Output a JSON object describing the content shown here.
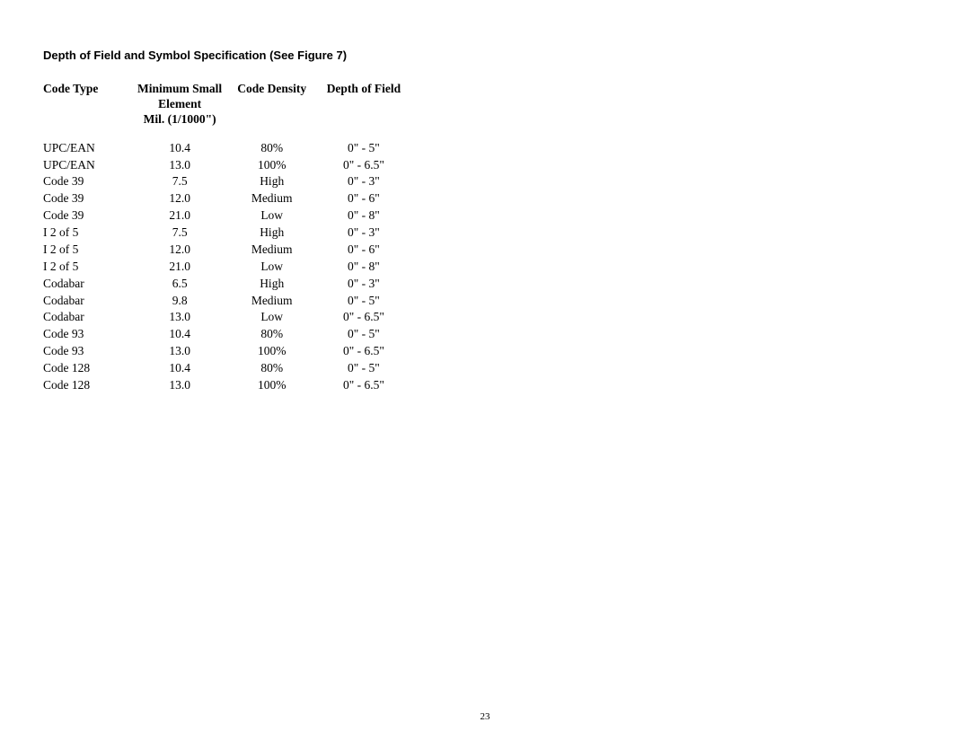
{
  "section_title": "Depth of Field and Symbol Specification (See Figure 7)",
  "page_number": "23",
  "table": {
    "columns": [
      {
        "key": "code_type",
        "label": "Code Type",
        "class": "col-code"
      },
      {
        "key": "min_element",
        "label": "Minimum Small\nElement\nMil. (1/1000\")",
        "class": "col-element"
      },
      {
        "key": "density",
        "label": "Code Density",
        "class": "col-density"
      },
      {
        "key": "depth",
        "label": "Depth of Field",
        "class": "col-depth"
      }
    ],
    "rows": [
      {
        "code_type": "UPC/EAN",
        "min_element": "10.4",
        "density": "80%",
        "depth": "0\" - 5\""
      },
      {
        "code_type": "UPC/EAN",
        "min_element": "13.0",
        "density": "100%",
        "depth": "0\" - 6.5\""
      },
      {
        "code_type": "Code 39",
        "min_element": "7.5",
        "density": "High",
        "depth": "0\" - 3\""
      },
      {
        "code_type": "Code 39",
        "min_element": "12.0",
        "density": "Medium",
        "depth": "0\" - 6\""
      },
      {
        "code_type": "Code 39",
        "min_element": "21.0",
        "density": "Low",
        "depth": "0\" - 8\""
      },
      {
        "code_type": "I 2 of 5",
        "min_element": "7.5",
        "density": "High",
        "depth": "0\" - 3\""
      },
      {
        "code_type": "I 2 of 5",
        "min_element": "12.0",
        "density": "Medium",
        "depth": "0\" - 6\""
      },
      {
        "code_type": "I 2 of 5",
        "min_element": "21.0",
        "density": "Low",
        "depth": "0\" - 8\""
      },
      {
        "code_type": "Codabar",
        "min_element": "6.5",
        "density": "High",
        "depth": "0\" - 3\""
      },
      {
        "code_type": "Codabar",
        "min_element": "9.8",
        "density": "Medium",
        "depth": "0\" - 5\""
      },
      {
        "code_type": "Codabar",
        "min_element": "13.0",
        "density": "Low",
        "depth": "0\" - 6.5\""
      },
      {
        "code_type": "Code 93",
        "min_element": "10.4",
        "density": "80%",
        "depth": "0\" - 5\""
      },
      {
        "code_type": "Code 93",
        "min_element": "13.0",
        "density": "100%",
        "depth": "0\" - 6.5\""
      },
      {
        "code_type": "Code 128",
        "min_element": "10.4",
        "density": "80%",
        "depth": "0\" - 5\""
      },
      {
        "code_type": "Code 128",
        "min_element": "13.0",
        "density": "100%",
        "depth": "0\" - 6.5\""
      }
    ]
  }
}
